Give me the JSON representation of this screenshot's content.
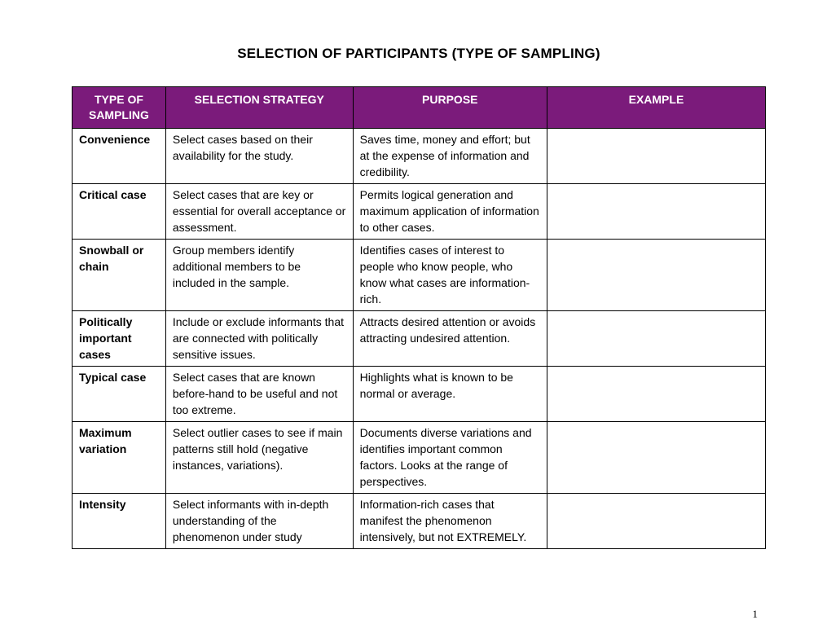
{
  "title": "SELECTION OF PARTICIPANTS (TYPE OF SAMPLING)",
  "colors": {
    "header_bg": "#7b1b7b",
    "header_text": "#ffffff",
    "border": "#000000",
    "page_bg": "#ffffff",
    "body_text": "#000000"
  },
  "table": {
    "columns": [
      "TYPE OF SAMPLING",
      "SELECTION STRATEGY",
      "PURPOSE",
      "EXAMPLE"
    ],
    "column_widths_pct": [
      13.5,
      27,
      28,
      31.5
    ],
    "rows": [
      {
        "type": "Convenience",
        "strategy": "Select cases based on their availability for the study.",
        "purpose": "Saves time, money and effort; but at the expense of information and credibility.",
        "example": ""
      },
      {
        "type": "Critical case",
        "strategy": "Select cases that are key or essential for overall acceptance or assessment.",
        "purpose": "Permits logical generation and maximum application of information to other cases.",
        "example": ""
      },
      {
        "type": "Snowball or chain",
        "strategy": "Group members identify additional members to be included in the sample.",
        "purpose": "Identifies cases of interest to people who know people, who know what cases are information-rich.",
        "example": ""
      },
      {
        "type": "Politically important cases",
        "strategy": "Include or exclude informants that are connected with politically sensitive issues.",
        "purpose": "Attracts desired attention or avoids attracting undesired attention.",
        "example": ""
      },
      {
        "type": "Typical case",
        "strategy": "Select cases that are known before-hand to be useful and not too extreme.",
        "purpose": "Highlights what is known to be normal or average.",
        "example": ""
      },
      {
        "type": "Maximum variation",
        "strategy": "Select outlier cases to see if main patterns still hold (negative instances, variations).",
        "purpose": "Documents diverse variations and identifies important common factors. Looks at the range of perspectives.",
        "example": ""
      },
      {
        "type": "Intensity",
        "strategy": "Select informants with in-depth understanding of the phenomenon under study",
        "purpose": "Information-rich cases that manifest the phenomenon intensively, but not EXTREMELY.",
        "example": ""
      }
    ]
  },
  "page_number": "1"
}
